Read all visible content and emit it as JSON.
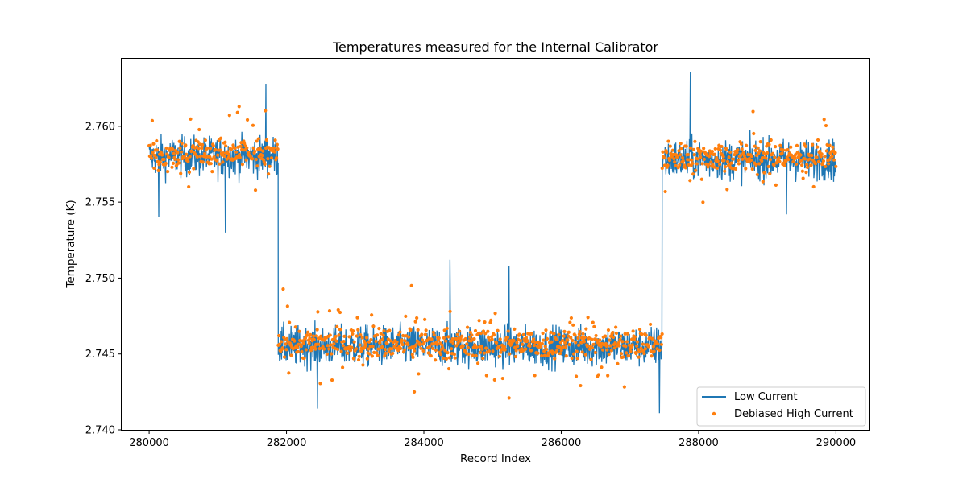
{
  "chart_data": {
    "type": "line",
    "title": "Temperatures measured for the Internal Calibrator",
    "xlabel": "Record Index",
    "ylabel": "Temperature (K)",
    "xlim": [
      279600,
      290500
    ],
    "ylim": [
      2.74,
      2.7645
    ],
    "xticks": [
      280000,
      282000,
      284000,
      286000,
      288000,
      290000
    ],
    "yticks": [
      2.74,
      2.745,
      2.75,
      2.755,
      2.76
    ],
    "ytick_labels": [
      "2.740",
      "2.745",
      "2.750",
      "2.755",
      "2.760"
    ],
    "grid": false,
    "legend_position": "lower right",
    "series": [
      {
        "name": "Low Current",
        "style": "line",
        "color": "#1f77b4",
        "segments": [
          {
            "x_start": 280000,
            "x_end": 281880,
            "level": 2.758,
            "spread": 0.0012
          },
          {
            "x_start": 281880,
            "x_end": 287470,
            "level": 2.7455,
            "spread": 0.0012
          },
          {
            "x_start": 287470,
            "x_end": 290000,
            "level": 2.7578,
            "spread": 0.0012
          }
        ],
        "extremes": [
          {
            "x": 280140,
            "y": 2.754
          },
          {
            "x": 281110,
            "y": 2.753
          },
          {
            "x": 281700,
            "y": 2.7628
          },
          {
            "x": 282450,
            "y": 2.7414
          },
          {
            "x": 284380,
            "y": 2.7512
          },
          {
            "x": 285240,
            "y": 2.7508
          },
          {
            "x": 287430,
            "y": 2.7411
          },
          {
            "x": 287880,
            "y": 2.7636
          },
          {
            "x": 289280,
            "y": 2.7542
          }
        ]
      },
      {
        "name": "Debiased High Current",
        "style": "scatter",
        "color": "#ff7f0e",
        "segments": [
          {
            "x_start": 280000,
            "x_end": 281880,
            "level": 2.7582,
            "spread": 0.001
          },
          {
            "x_start": 281880,
            "x_end": 287470,
            "level": 2.7457,
            "spread": 0.001
          },
          {
            "x_start": 287470,
            "x_end": 290000,
            "level": 2.758,
            "spread": 0.001
          }
        ],
        "extremes": [
          {
            "x": 281310,
            "y": 2.7613
          },
          {
            "x": 283820,
            "y": 2.7495
          },
          {
            "x": 285240,
            "y": 2.7421
          },
          {
            "x": 283860,
            "y": 2.7425
          }
        ]
      }
    ]
  }
}
